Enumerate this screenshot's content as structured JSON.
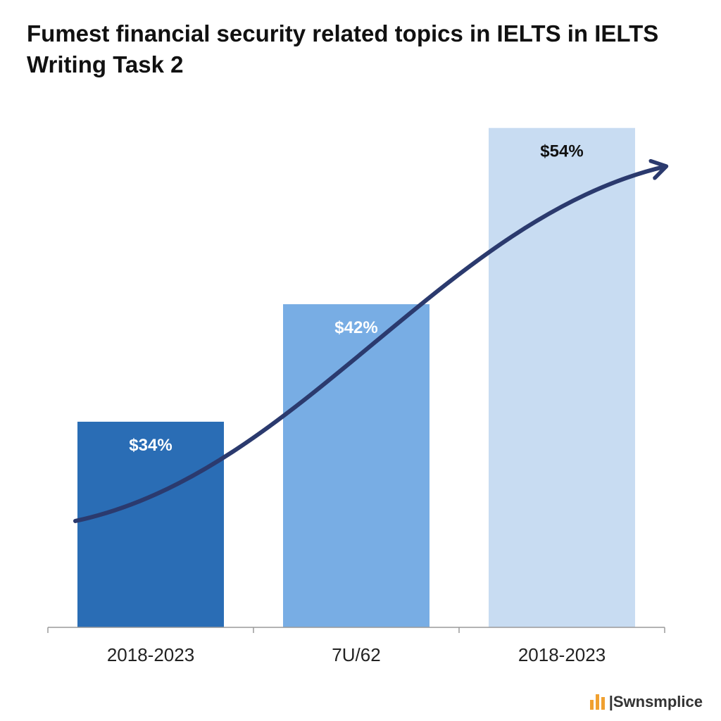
{
  "chart_data": {
    "type": "bar",
    "title": "Fumest financial security related topics in IELTS in IELTS Writing Task 2",
    "categories": [
      "2018-2023",
      "7U/62",
      "2018-2023"
    ],
    "values": [
      34,
      42,
      54
    ],
    "value_labels": [
      "$34%",
      "$42%",
      "$54%"
    ],
    "bar_colors": [
      "#2a6db5",
      "#78ade4",
      "#c8dcf2"
    ],
    "label_colors": [
      "#ffffff",
      "#ffffff",
      "#111111"
    ],
    "trend_color": "#2b3a6e",
    "ylim": [
      20,
      56
    ],
    "xlabel": "",
    "ylabel": "",
    "grid": false,
    "trend_arrow": true
  },
  "brand": {
    "text": "|Swnsmplice",
    "accent": "#f0a030"
  }
}
